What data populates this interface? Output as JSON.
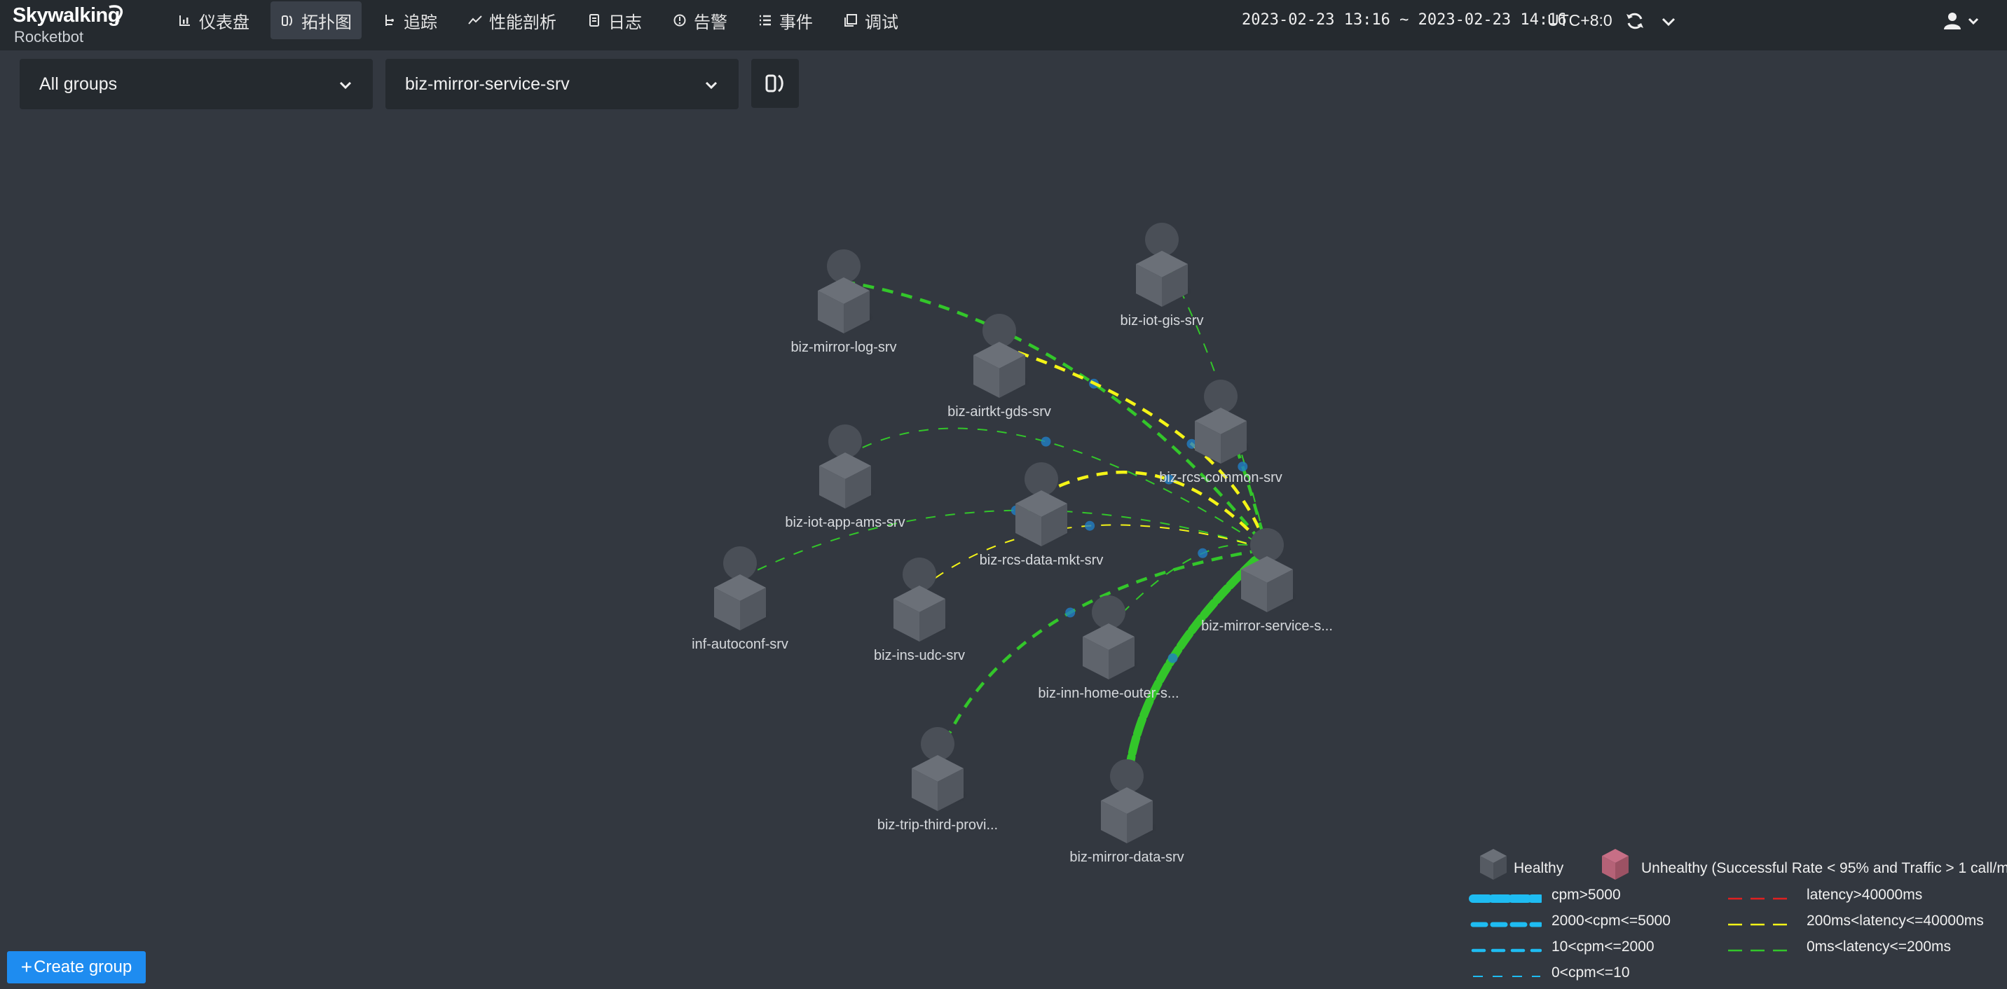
{
  "app": {
    "logo_text": "Skywalking",
    "logo_subtitle": "Rocketbot"
  },
  "nav": {
    "items": [
      {
        "label": "仪表盘",
        "icon": "bar-chart-icon"
      },
      {
        "label": "拓扑图",
        "icon": "topology-icon",
        "active": true
      },
      {
        "label": "追踪",
        "icon": "trace-icon"
      },
      {
        "label": "性能剖析",
        "icon": "trend-icon"
      },
      {
        "label": "日志",
        "icon": "log-icon"
      },
      {
        "label": "告警",
        "icon": "alarm-icon"
      },
      {
        "label": "事件",
        "icon": "list-icon"
      },
      {
        "label": "调试",
        "icon": "debug-icon"
      }
    ]
  },
  "header": {
    "time_range": "2023-02-23 13:16 ~ 2023-02-23 14:16",
    "timezone": "UTC+8:0"
  },
  "filters": {
    "group": "All groups",
    "service": "biz-mirror-service-srv"
  },
  "topology": {
    "nodes": [
      {
        "id": "log",
        "label": "biz-mirror-log-srv"
      },
      {
        "id": "gis",
        "label": "biz-iot-gis-srv"
      },
      {
        "id": "gds",
        "label": "biz-airtkt-gds-srv"
      },
      {
        "id": "common",
        "label": "biz-rcs-common-srv"
      },
      {
        "id": "ams",
        "label": "biz-iot-app-ams-srv"
      },
      {
        "id": "mkt",
        "label": "biz-rcs-data-mkt-srv"
      },
      {
        "id": "autoconf",
        "label": "inf-autoconf-srv"
      },
      {
        "id": "udc",
        "label": "biz-ins-udc-srv"
      },
      {
        "id": "mirror",
        "label": "biz-mirror-service-s..."
      },
      {
        "id": "home",
        "label": "biz-inn-home-outer-s..."
      },
      {
        "id": "trip",
        "label": "biz-trip-third-provi..."
      },
      {
        "id": "data",
        "label": "biz-mirror-data-srv"
      }
    ],
    "edges": [
      {
        "from": "log",
        "to": "mirror",
        "latency": "0ms<latency<=200ms",
        "cpm": "10<cpm<=2000"
      },
      {
        "from": "gis",
        "to": "mirror",
        "latency": "0ms<latency<=200ms",
        "cpm": "0<cpm<=10"
      },
      {
        "from": "gds",
        "to": "mirror",
        "latency": "200ms<latency<=40000ms",
        "cpm": "10<cpm<=2000"
      },
      {
        "from": "common",
        "to": "mirror",
        "latency": "0ms<latency<=200ms",
        "cpm": "10<cpm<=2000"
      },
      {
        "from": "ams",
        "to": "mirror",
        "latency": "0ms<latency<=200ms",
        "cpm": "0<cpm<=10"
      },
      {
        "from": "mkt",
        "to": "mirror",
        "latency": "200ms<latency<=40000ms",
        "cpm": "10<cpm<=2000"
      },
      {
        "from": "autoconf",
        "to": "mirror",
        "latency": "0ms<latency<=200ms",
        "cpm": "0<cpm<=10"
      },
      {
        "from": "udc",
        "to": "mirror",
        "latency": "200ms<latency<=40000ms",
        "cpm": "0<cpm<=10"
      },
      {
        "from": "home",
        "to": "mirror",
        "latency": "0ms<latency<=200ms",
        "cpm": "0<cpm<=10"
      },
      {
        "from": "trip",
        "to": "mirror",
        "latency": "0ms<latency<=200ms",
        "cpm": "10<cpm<=2000"
      },
      {
        "from": "data",
        "to": "mirror",
        "latency": "0ms<latency<=200ms",
        "cpm": "cpm>5000"
      }
    ]
  },
  "legend": {
    "healthy": "Healthy",
    "unhealthy": "Unhealthy (Successful Rate < 95% and Traffic > 1 call/m",
    "cpm": [
      "cpm>5000",
      "2000<cpm<=5000",
      "10<cpm<=2000",
      "0<cpm<=10"
    ],
    "latency": [
      "latency>40000ms",
      "200ms<latency<=40000ms",
      "0ms<latency<=200ms"
    ]
  },
  "create_group": {
    "plus": "+",
    "label": "Create group"
  },
  "colors": {
    "background": "#333840",
    "topbar": "#252a2f",
    "node_body": "#5f646c",
    "node_top": "#6b7078",
    "latency_high": "#e02020",
    "latency_mid": "#f4f417",
    "latency_low": "#33c62a",
    "cpm": "#1ebcf2",
    "unhealthy": "#b56277",
    "button": "#1e8cf0"
  }
}
